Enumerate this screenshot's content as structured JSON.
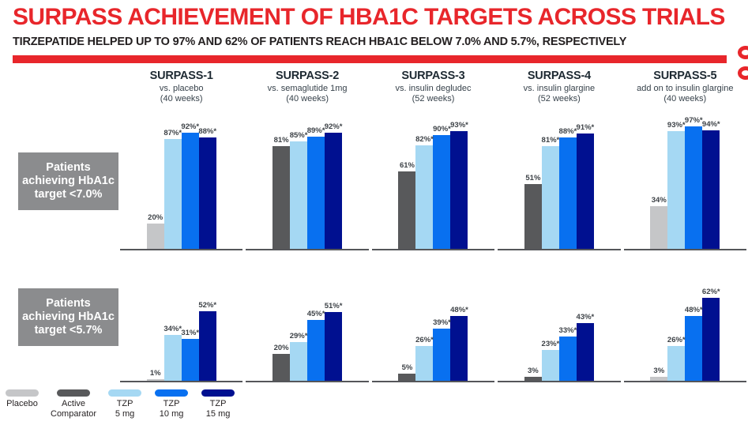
{
  "header": {
    "title": "SURPASS ACHIEVEMENT OF HBA1C TARGETS ACROSS TRIALS",
    "subtitle": "TIRZEPATIDE HELPED UP TO 97% AND 62% OF PATIENTS REACH HBA1C BELOW 7.0% AND 5.7%, RESPECTIVELY"
  },
  "colors": {
    "accent_red": "#E8262B",
    "subtitle_text": "#231F20",
    "trial_title_text": "#1E2A33",
    "value_label_text": "#3D4247",
    "row_label_box": "#8B8C8E",
    "baseline": "#55565A",
    "series": {
      "Placebo": "#C5C6C8",
      "Active Comparator": "#58595B",
      "TZP 5 mg": "#A5D8F3",
      "TZP 10 mg": "#0870F0",
      "TZP 15 mg": "#001090"
    }
  },
  "legend": {
    "items": [
      {
        "label": "Placebo",
        "series": "Placebo"
      },
      {
        "label": "Active\nComparator",
        "series": "Active Comparator"
      },
      {
        "label": "TZP\n5 mg",
        "series": "TZP 5 mg"
      },
      {
        "label": "TZP\n10 mg",
        "series": "TZP 10 mg"
      },
      {
        "label": "TZP\n15 mg",
        "series": "TZP 15 mg"
      }
    ]
  },
  "chart_data": {
    "type": "bar",
    "unit": "% of patients",
    "value_axis": {
      "min": 0,
      "max": 100,
      "gridlines": false
    },
    "legend_position": "bottom-left",
    "series_names": [
      "Placebo",
      "Active Comparator",
      "TZP 5 mg",
      "TZP 10 mg",
      "TZP 15 mg"
    ],
    "trials": [
      {
        "name": "SURPASS-1",
        "comparator": "vs. placebo",
        "duration": "(40 weeks)"
      },
      {
        "name": "SURPASS-2",
        "comparator": "vs. semaglutide 1mg",
        "duration": "(40 weeks)"
      },
      {
        "name": "SURPASS-3",
        "comparator": "vs. insulin degludec",
        "duration": "(52 weeks)"
      },
      {
        "name": "SURPASS-4",
        "comparator": "vs. insulin glargine",
        "duration": "(52 weeks)"
      },
      {
        "name": "SURPASS-5",
        "comparator": "add on to insulin glargine",
        "duration": "(40 weeks)"
      }
    ],
    "rows": [
      {
        "label": "Patients\nachieving HbA1c\ntarget <7.0%",
        "groups": [
          {
            "trial": "SURPASS-1",
            "bars": [
              {
                "series": "Placebo",
                "label": "20%",
                "value": 20
              },
              {
                "series": "TZP 5 mg",
                "label": "87%*",
                "value": 87
              },
              {
                "series": "TZP 10 mg",
                "label": "92%*",
                "value": 92
              },
              {
                "series": "TZP 15 mg",
                "label": "88%*",
                "value": 88
              }
            ]
          },
          {
            "trial": "SURPASS-2",
            "bars": [
              {
                "series": "Active Comparator",
                "label": "81%",
                "value": 81
              },
              {
                "series": "TZP 5 mg",
                "label": "85%*",
                "value": 85
              },
              {
                "series": "TZP 10 mg",
                "label": "89%*",
                "value": 89
              },
              {
                "series": "TZP 15 mg",
                "label": "92%*",
                "value": 92
              }
            ]
          },
          {
            "trial": "SURPASS-3",
            "bars": [
              {
                "series": "Active Comparator",
                "label": "61%",
                "value": 61
              },
              {
                "series": "TZP 5 mg",
                "label": "82%*",
                "value": 82
              },
              {
                "series": "TZP 10 mg",
                "label": "90%*",
                "value": 90
              },
              {
                "series": "TZP 15 mg",
                "label": "93%*",
                "value": 93
              }
            ]
          },
          {
            "trial": "SURPASS-4",
            "bars": [
              {
                "series": "Active Comparator",
                "label": "51%",
                "value": 51
              },
              {
                "series": "TZP 5 mg",
                "label": "81%*",
                "value": 81
              },
              {
                "series": "TZP 10 mg",
                "label": "88%*",
                "value": 88
              },
              {
                "series": "TZP 15 mg",
                "label": "91%*",
                "value": 91
              }
            ]
          },
          {
            "trial": "SURPASS-5",
            "bars": [
              {
                "series": "Placebo",
                "label": "34%",
                "value": 34
              },
              {
                "series": "TZP 5 mg",
                "label": "93%*",
                "value": 93
              },
              {
                "series": "TZP 10 mg",
                "label": "97%*",
                "value": 97
              },
              {
                "series": "TZP 15 mg",
                "label": "94%*",
                "value": 94
              }
            ]
          }
        ]
      },
      {
        "label": "Patients\nachieving HbA1c\ntarget <5.7%",
        "groups": [
          {
            "trial": "SURPASS-1",
            "bars": [
              {
                "series": "Placebo",
                "label": "1%",
                "value": 1
              },
              {
                "series": "TZP 5 mg",
                "label": "34%*",
                "value": 34
              },
              {
                "series": "TZP 10 mg",
                "label": "31%*",
                "value": 31
              },
              {
                "series": "TZP 15 mg",
                "label": "52%*",
                "value": 52
              }
            ]
          },
          {
            "trial": "SURPASS-2",
            "bars": [
              {
                "series": "Active Comparator",
                "label": "20%",
                "value": 20
              },
              {
                "series": "TZP 5 mg",
                "label": "29%*",
                "value": 29
              },
              {
                "series": "TZP 10 mg",
                "label": "45%*",
                "value": 45
              },
              {
                "series": "TZP 15 mg",
                "label": "51%*",
                "value": 51
              }
            ]
          },
          {
            "trial": "SURPASS-3",
            "bars": [
              {
                "series": "Active Comparator",
                "label": "5%",
                "value": 5
              },
              {
                "series": "TZP 5 mg",
                "label": "26%*",
                "value": 26
              },
              {
                "series": "TZP 10 mg",
                "label": "39%*",
                "value": 39
              },
              {
                "series": "TZP 15 mg",
                "label": "48%*",
                "value": 48
              }
            ]
          },
          {
            "trial": "SURPASS-4",
            "bars": [
              {
                "series": "Active Comparator",
                "label": "3%",
                "value": 3
              },
              {
                "series": "TZP 5 mg",
                "label": "23%*",
                "value": 23
              },
              {
                "series": "TZP 10 mg",
                "label": "33%*",
                "value": 33
              },
              {
                "series": "TZP 15 mg",
                "label": "43%*",
                "value": 43
              }
            ]
          },
          {
            "trial": "SURPASS-5",
            "bars": [
              {
                "series": "Placebo",
                "label": "3%",
                "value": 3
              },
              {
                "series": "TZP 5 mg",
                "label": "26%*",
                "value": 26
              },
              {
                "series": "TZP 10 mg",
                "label": "48%*",
                "value": 48
              },
              {
                "series": "TZP 15 mg",
                "label": "62%*",
                "value": 62
              }
            ]
          }
        ]
      }
    ]
  }
}
